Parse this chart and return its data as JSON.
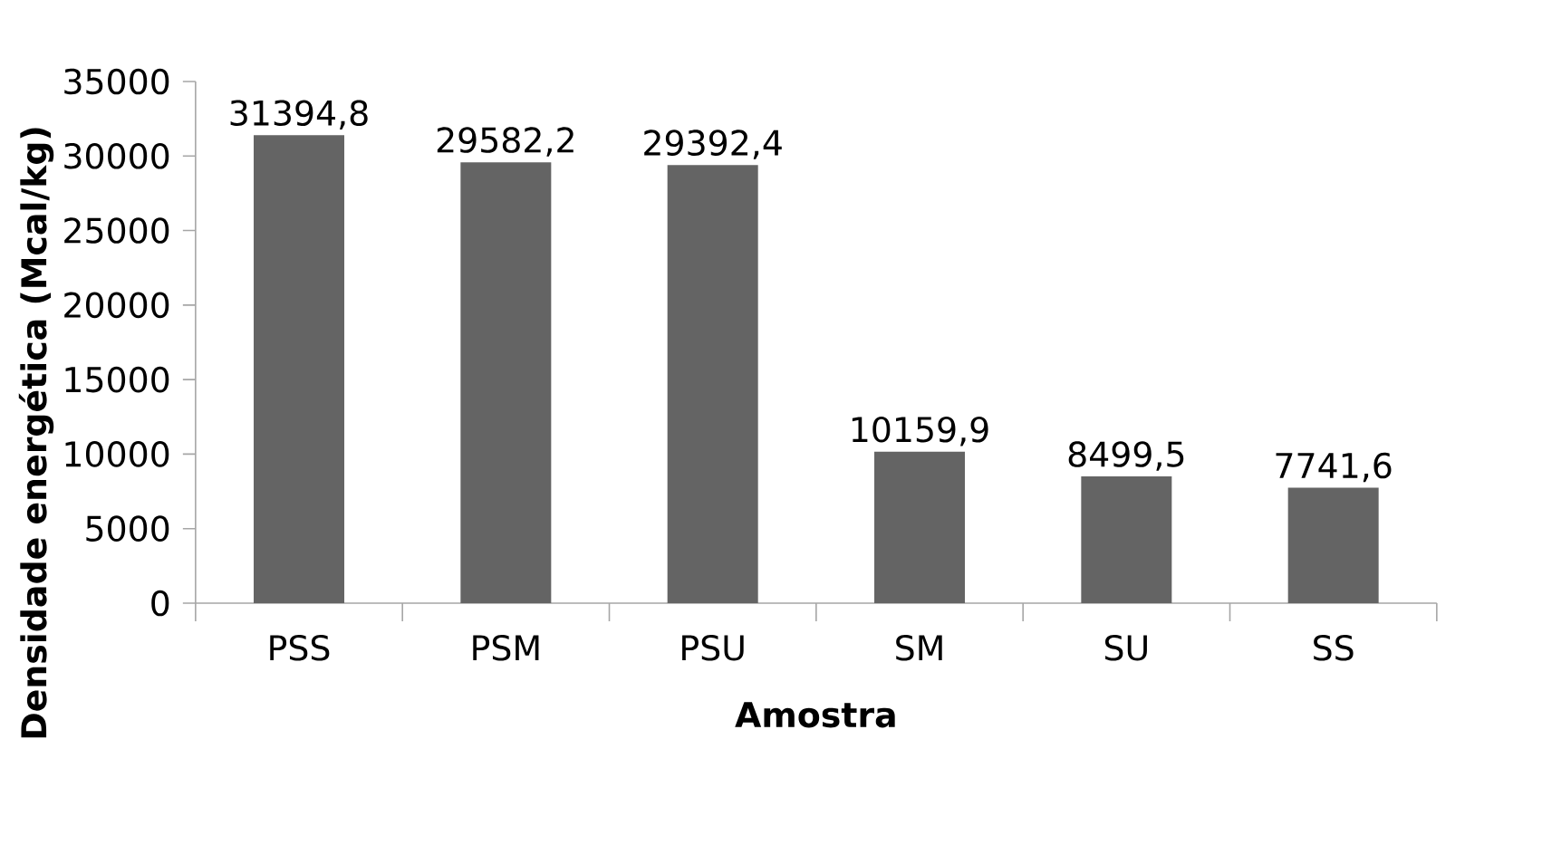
{
  "chart_data": {
    "type": "bar",
    "xlabel": "Amostra",
    "ylabel": "Densidade energética (Mcal/kg)",
    "categories": [
      "PSS",
      "PSM",
      "PSU",
      "SM",
      "SU",
      "SS"
    ],
    "values": [
      31394.8,
      29582.2,
      29392.4,
      10159.9,
      8499.5,
      7741.6
    ],
    "value_labels": [
      "31394,8",
      "29582,2",
      "29392,4",
      "10159,9",
      "8499,5",
      "7741,6"
    ],
    "color": "#646464",
    "ylim": [
      0,
      35000
    ],
    "yticks": [
      0,
      5000,
      10000,
      15000,
      20000,
      25000,
      30000,
      35000
    ],
    "grid": false
  }
}
